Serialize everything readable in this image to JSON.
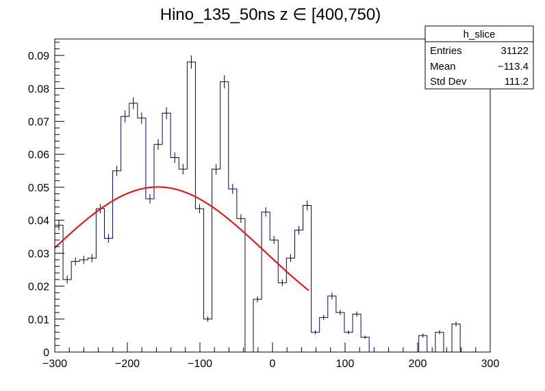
{
  "chart_data": {
    "type": "histogram",
    "title": "Hino_135_50ns z  ∈ [400,750)",
    "xlabel": "",
    "ylabel": "",
    "xlim": [
      -300,
      300
    ],
    "ylim": [
      0,
      0.095
    ],
    "x_ticks": [
      -300,
      -200,
      -100,
      0,
      100,
      200,
      300
    ],
    "y_ticks": [
      0,
      0.01,
      0.02,
      0.03,
      0.04,
      0.05,
      0.06,
      0.07,
      0.08,
      0.09
    ],
    "x_tick_labels": [
      "−300",
      "−200",
      "−100",
      "0",
      "100",
      "200",
      "300"
    ],
    "y_tick_labels": [
      "0",
      "0.01",
      "0.02",
      "0.03",
      "0.04",
      "0.05",
      "0.06",
      "0.07",
      "0.08",
      "0.09"
    ],
    "grid": false,
    "bin_edges_start": -300,
    "bin_width": 11.4,
    "series": [
      {
        "kind": "histogram",
        "color": "#000080",
        "values": [
          0.0385,
          0.022,
          0.0275,
          0.028,
          0.0285,
          0.0435,
          0.0345,
          0.055,
          0.0715,
          0.0755,
          0.071,
          0.0465,
          0.063,
          0.0725,
          0.059,
          0.0555,
          0.088,
          0.0435,
          0.01,
          0.0555,
          0.082,
          0.0495,
          0.0405,
          0.0,
          0.016,
          0.0425,
          0.034,
          0.021,
          0.0285,
          0.037,
          0.0445,
          0.006,
          0.0105,
          0.017,
          0.012,
          0.006,
          0.0115,
          0.0045,
          0.0,
          0.0,
          0.0,
          0.0,
          0.0,
          0.0,
          0.005,
          0.0,
          0.006,
          0.0,
          0.0085,
          0.0
        ],
        "errors": [
          0.0015,
          0.0012,
          0.0012,
          0.0012,
          0.0012,
          0.0014,
          0.0013,
          0.0015,
          0.0018,
          0.0018,
          0.0017,
          0.0014,
          0.0016,
          0.0018,
          0.0016,
          0.0016,
          0.002,
          0.0014,
          0.0008,
          0.0016,
          0.002,
          0.0015,
          0.0013,
          0.0,
          0.0009,
          0.0014,
          0.0012,
          0.001,
          0.0012,
          0.0013,
          0.0015,
          0.0006,
          0.0008,
          0.001,
          0.0008,
          0.0006,
          0.0008,
          0.0005,
          0.0,
          0.0,
          0.0,
          0.0,
          0.0,
          0.0,
          0.0006,
          0.0,
          0.0006,
          0.0,
          0.0007,
          0.0
        ]
      },
      {
        "kind": "fit",
        "color": "#ff0000",
        "function": "gaussian",
        "constant": 0.0501,
        "mean": -158,
        "sigma": 148,
        "x_range": [
          -300,
          50
        ]
      }
    ],
    "stats_box": {
      "title": "h_slice",
      "rows": [
        {
          "label": "Entries",
          "value": "31122"
        },
        {
          "label": "Mean",
          "value": "−113.4"
        },
        {
          "label": "Std Dev",
          "value": "111.2"
        }
      ]
    }
  }
}
